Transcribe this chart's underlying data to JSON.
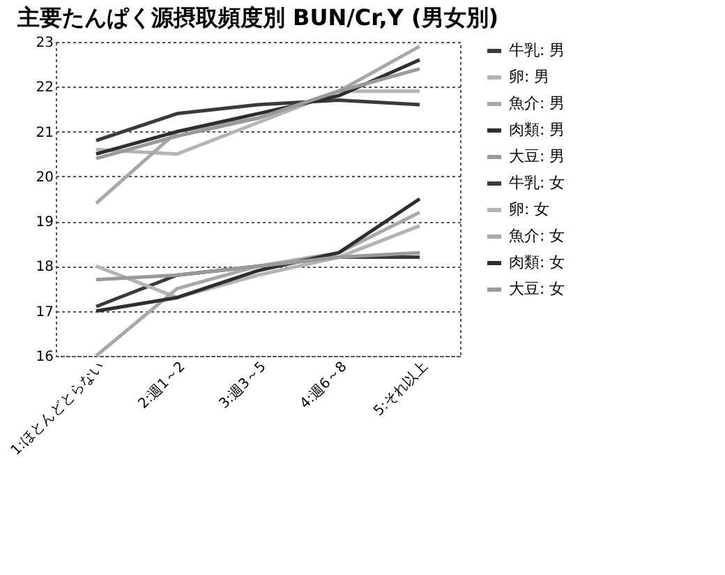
{
  "chart_data": {
    "type": "line",
    "title": "主要たんぱく源摂取頻度別 BUN/Cr,Y (男女別)",
    "categories": [
      "1:ほとんどとらない",
      "2:週1～2",
      "3:週3～5",
      "4:週6～8",
      "5:それ以上"
    ],
    "series": [
      {
        "name": "牛乳: 男",
        "color": "#3a3a3a",
        "values": [
          20.8,
          21.4,
          21.6,
          21.7,
          21.6
        ]
      },
      {
        "name": "卵: 男",
        "color": "#b4b4b4",
        "values": [
          20.6,
          20.5,
          21.2,
          21.9,
          21.9
        ]
      },
      {
        "name": "魚介: 男",
        "color": "#a8a8a8",
        "values": [
          19.4,
          21.0,
          21.3,
          21.9,
          22.9
        ]
      },
      {
        "name": "肉類: 男",
        "color": "#2e2e2e",
        "values": [
          20.5,
          21.0,
          21.4,
          21.8,
          22.6
        ]
      },
      {
        "name": "大豆: 男",
        "color": "#9a9a9a",
        "values": [
          20.4,
          20.9,
          21.3,
          21.9,
          22.4
        ]
      },
      {
        "name": "牛乳: 女",
        "color": "#3a3a3a",
        "values": [
          17.1,
          17.8,
          18.0,
          18.2,
          18.2
        ]
      },
      {
        "name": "卵: 女",
        "color": "#b4b4b4",
        "values": [
          18.0,
          17.3,
          17.8,
          18.2,
          18.9
        ]
      },
      {
        "name": "魚介: 女",
        "color": "#a8a8a8",
        "values": [
          16.0,
          17.5,
          18.0,
          18.3,
          19.2
        ]
      },
      {
        "name": "肉類: 女",
        "color": "#2e2e2e",
        "values": [
          17.0,
          17.3,
          17.9,
          18.3,
          19.5
        ]
      },
      {
        "name": "大豆: 女",
        "color": "#9a9a9a",
        "values": [
          17.7,
          17.8,
          18.0,
          18.2,
          18.3
        ]
      }
    ],
    "ylim": [
      16,
      23
    ],
    "yticks": [
      16,
      17,
      18,
      19,
      20,
      21,
      22,
      23
    ],
    "grid": "y",
    "legend": "right",
    "marker": "none",
    "line_style": "solid"
  }
}
